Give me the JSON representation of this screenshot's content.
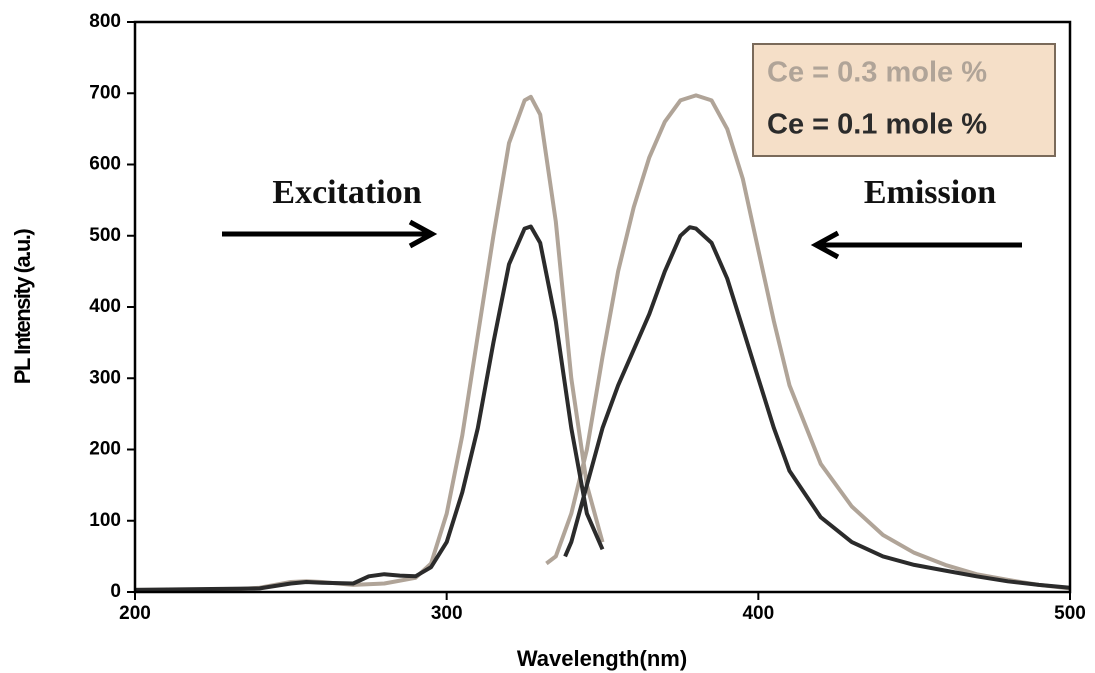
{
  "chart_data": {
    "type": "line",
    "x_label": "Wavelength(nm)",
    "y_label": "PL Intensity (a.u.)",
    "annotations": [
      "Excitation",
      "Emission"
    ],
    "xlim": [
      200,
      500
    ],
    "xticks": [
      200,
      300,
      400,
      500
    ],
    "ylim": [
      0,
      800
    ],
    "yticks": [
      0,
      100,
      200,
      300,
      400,
      500,
      600,
      700,
      800
    ],
    "legend": "top-right",
    "series": [
      {
        "name": "Ce = 0.3 mole %",
        "color": "#b0a498",
        "x": [
          200,
          230,
          240,
          250,
          255,
          260,
          270,
          280,
          290,
          295,
          300,
          305,
          310,
          315,
          320,
          325,
          327,
          330,
          335,
          340,
          345,
          350,
          null,
          332,
          335,
          340,
          345,
          350,
          355,
          360,
          365,
          370,
          375,
          380,
          385,
          390,
          395,
          400,
          405,
          410,
          420,
          430,
          440,
          450,
          460,
          470,
          480,
          490,
          500
        ],
        "values": [
          3,
          3,
          6,
          14,
          15,
          14,
          10,
          12,
          20,
          40,
          110,
          220,
          360,
          500,
          630,
          690,
          695,
          670,
          520,
          300,
          150,
          70,
          null,
          40,
          50,
          110,
          200,
          330,
          450,
          540,
          610,
          660,
          690,
          697,
          690,
          650,
          580,
          480,
          380,
          290,
          180,
          120,
          80,
          55,
          38,
          25,
          17,
          10,
          5
        ]
      },
      {
        "name": "Ce = 0.1 mole %",
        "color": "#2b2b2b",
        "x": [
          200,
          240,
          250,
          255,
          260,
          270,
          275,
          280,
          285,
          290,
          295,
          300,
          305,
          310,
          315,
          320,
          325,
          327,
          330,
          335,
          340,
          345,
          350,
          null,
          338,
          340,
          345,
          350,
          355,
          360,
          365,
          370,
          375,
          378,
          380,
          385,
          390,
          395,
          400,
          405,
          410,
          420,
          430,
          440,
          450,
          460,
          470,
          480,
          490,
          500
        ],
        "values": [
          3,
          5,
          12,
          14,
          13,
          12,
          22,
          25,
          23,
          22,
          35,
          70,
          140,
          230,
          350,
          460,
          510,
          513,
          490,
          380,
          230,
          110,
          60,
          null,
          50,
          70,
          150,
          230,
          290,
          340,
          390,
          450,
          500,
          512,
          510,
          490,
          440,
          370,
          300,
          230,
          170,
          105,
          70,
          50,
          38,
          30,
          22,
          15,
          10,
          6
        ]
      }
    ]
  }
}
